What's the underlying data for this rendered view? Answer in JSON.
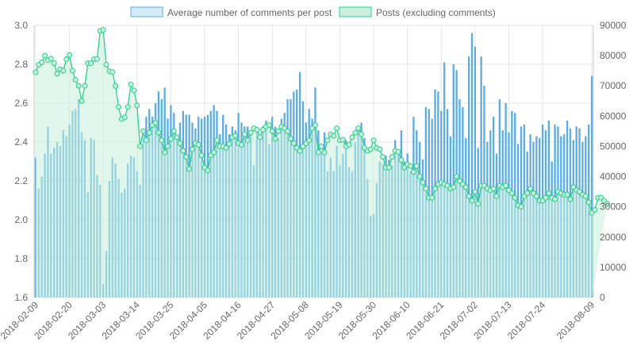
{
  "chart_data": {
    "type": "bar",
    "legend_position": "top",
    "grid": true,
    "colors": {
      "bar_fill": "#5dade2",
      "legend_bar_fill": "#d6eaf8",
      "bar_border": "#5dade2",
      "area_fill": "#c8f0dc",
      "line_color": "#2ecc8f",
      "grid": "#e6e6e6"
    },
    "start_date": "2018-02-09",
    "x_tick_labels": [
      "2018-02-09",
      "2018-02-20",
      "2018-03-03",
      "2018-03-14",
      "2018-03-25",
      "2018-04-05",
      "2018-04-16",
      "2018-04-27",
      "2018-05-08",
      "2018-05-19",
      "2018-05-30",
      "2018-06-10",
      "2018-06-21",
      "2018-07-02",
      "2018-07-13",
      "2018-07-24",
      "2018-08-09"
    ],
    "y_left": {
      "min": 1.6,
      "max": 3.0,
      "ticks": [
        "1.6",
        "1.8",
        "2.0",
        "2.2",
        "2.4",
        "2.6",
        "2.8",
        "3.0"
      ]
    },
    "y_right": {
      "min": 0,
      "max": 90000,
      "ticks": [
        "0",
        "10000",
        "20000",
        "30000",
        "40000",
        "50000",
        "60000",
        "70000",
        "80000",
        "90000"
      ]
    },
    "series": [
      {
        "name": "Average number of comments per post",
        "type": "bar",
        "axis": "left",
        "values": [
          2.32,
          2.16,
          2.22,
          2.34,
          2.48,
          2.34,
          2.37,
          2.4,
          2.38,
          2.46,
          2.43,
          2.49,
          2.56,
          2.57,
          2.62,
          2.45,
          2.41,
          2.14,
          2.42,
          2.41,
          2.23,
          2.18,
          1.67,
          1.84,
          2.2,
          2.32,
          2.29,
          2.21,
          2.14,
          2.16,
          2.29,
          2.33,
          2.32,
          2.25,
          2.18,
          2.47,
          2.53,
          2.57,
          2.53,
          2.6,
          2.66,
          2.62,
          2.68,
          2.52,
          2.59,
          2.55,
          2.43,
          2.5,
          2.56,
          2.54,
          2.54,
          2.5,
          2.47,
          2.53,
          2.52,
          2.53,
          2.54,
          2.56,
          2.59,
          2.56,
          2.44,
          2.54,
          2.49,
          2.44,
          2.48,
          2.46,
          2.55,
          2.5,
          2.48,
          2.48,
          2.45,
          2.28,
          2.47,
          2.43,
          2.48,
          2.51,
          2.39,
          2.53,
          2.48,
          2.42,
          2.52,
          2.55,
          2.62,
          2.62,
          2.66,
          2.67,
          2.76,
          2.61,
          2.5,
          2.57,
          2.52,
          2.68,
          2.46,
          2.35,
          2.45,
          2.25,
          2.32,
          2.25,
          2.38,
          2.28,
          2.34,
          2.41,
          2.27,
          2.25,
          2.4,
          2.48,
          2.5,
          2.42,
          2.21,
          2.02,
          2.03,
          2.19,
          2.3,
          2.29,
          2.33,
          2.31,
          2.28,
          2.41,
          2.35,
          2.46,
          2.3,
          2.34,
          2.25,
          2.53,
          2.46,
          2.4,
          2.31,
          2.58,
          2.57,
          2.52,
          2.67,
          2.66,
          2.56,
          2.81,
          2.57,
          2.43,
          2.8,
          2.77,
          2.62,
          2.58,
          2.42,
          2.84,
          2.96,
          2.89,
          2.37,
          2.84,
          2.69,
          2.4,
          2.46,
          2.53,
          2.34,
          2.62,
          2.46,
          2.6,
          2.45,
          2.56,
          2.55,
          2.39,
          2.48,
          2.49,
          2.35,
          2.44,
          2.4,
          2.43,
          2.42,
          2.49,
          2.46,
          2.51,
          2.3,
          2.49,
          2.48,
          2.43,
          2.44,
          2.51,
          2.47,
          2.41,
          2.48,
          2.47,
          2.4,
          2.43,
          2.49,
          2.74
        ]
      },
      {
        "name": "Posts (excluding comments)",
        "type": "area",
        "axis": "right",
        "values": [
          74500,
          77000,
          77800,
          80000,
          78500,
          79000,
          77500,
          74000,
          75500,
          75000,
          78800,
          80200,
          75000,
          72000,
          70000,
          65000,
          70000,
          77500,
          77500,
          78800,
          78900,
          88200,
          88500,
          77000,
          74800,
          74600,
          70000,
          63000,
          59000,
          59600,
          63000,
          70500,
          68500,
          63500,
          50000,
          55000,
          52000,
          54500,
          57000,
          57800,
          54500,
          52000,
          48000,
          50000,
          52500,
          55000,
          53000,
          51000,
          48500,
          46500,
          42500,
          49000,
          51000,
          50500,
          47000,
          43000,
          42000,
          47000,
          48000,
          52000,
          50000,
          50000,
          49500,
          50800,
          53000,
          53500,
          51000,
          50500,
          54000,
          52000,
          54500,
          56000,
          55500,
          53000,
          55500,
          56500,
          57000,
          55000,
          52500,
          55000,
          56500,
          56000,
          55000,
          52500,
          51000,
          49500,
          48500,
          50000,
          51000,
          52000,
          56000,
          57000,
          48000,
          50000,
          48000,
          52000,
          54000,
          53500,
          56000,
          52000,
          52200,
          50000,
          50500,
          53000,
          54500,
          56000,
          54000,
          49500,
          48500,
          49000,
          52000,
          49500,
          49000,
          46500,
          43000,
          43000,
          46500,
          48500,
          48200,
          45500,
          43000,
          44000,
          43500,
          41500,
          43500,
          40000,
          38000,
          36000,
          33000,
          33000,
          36000,
          37500,
          38000,
          37500,
          37000,
          36000,
          36500,
          40000,
          38500,
          37500,
          36500,
          33500,
          32000,
          35000,
          31000,
          37000,
          37000,
          36000,
          35500,
          36000,
          33500,
          37000,
          36500,
          37000,
          35500,
          34500,
          33000,
          30500,
          30000,
          33500,
          34500,
          36000,
          34500,
          33500,
          32000,
          32000,
          33000,
          34500,
          33000,
          32500,
          35000,
          34500,
          34000,
          34000,
          32500,
          36500,
          35500,
          35000,
          34000,
          33500,
          31500,
          28000,
          29000,
          33000,
          33000,
          32000,
          31000
        ]
      }
    ]
  }
}
